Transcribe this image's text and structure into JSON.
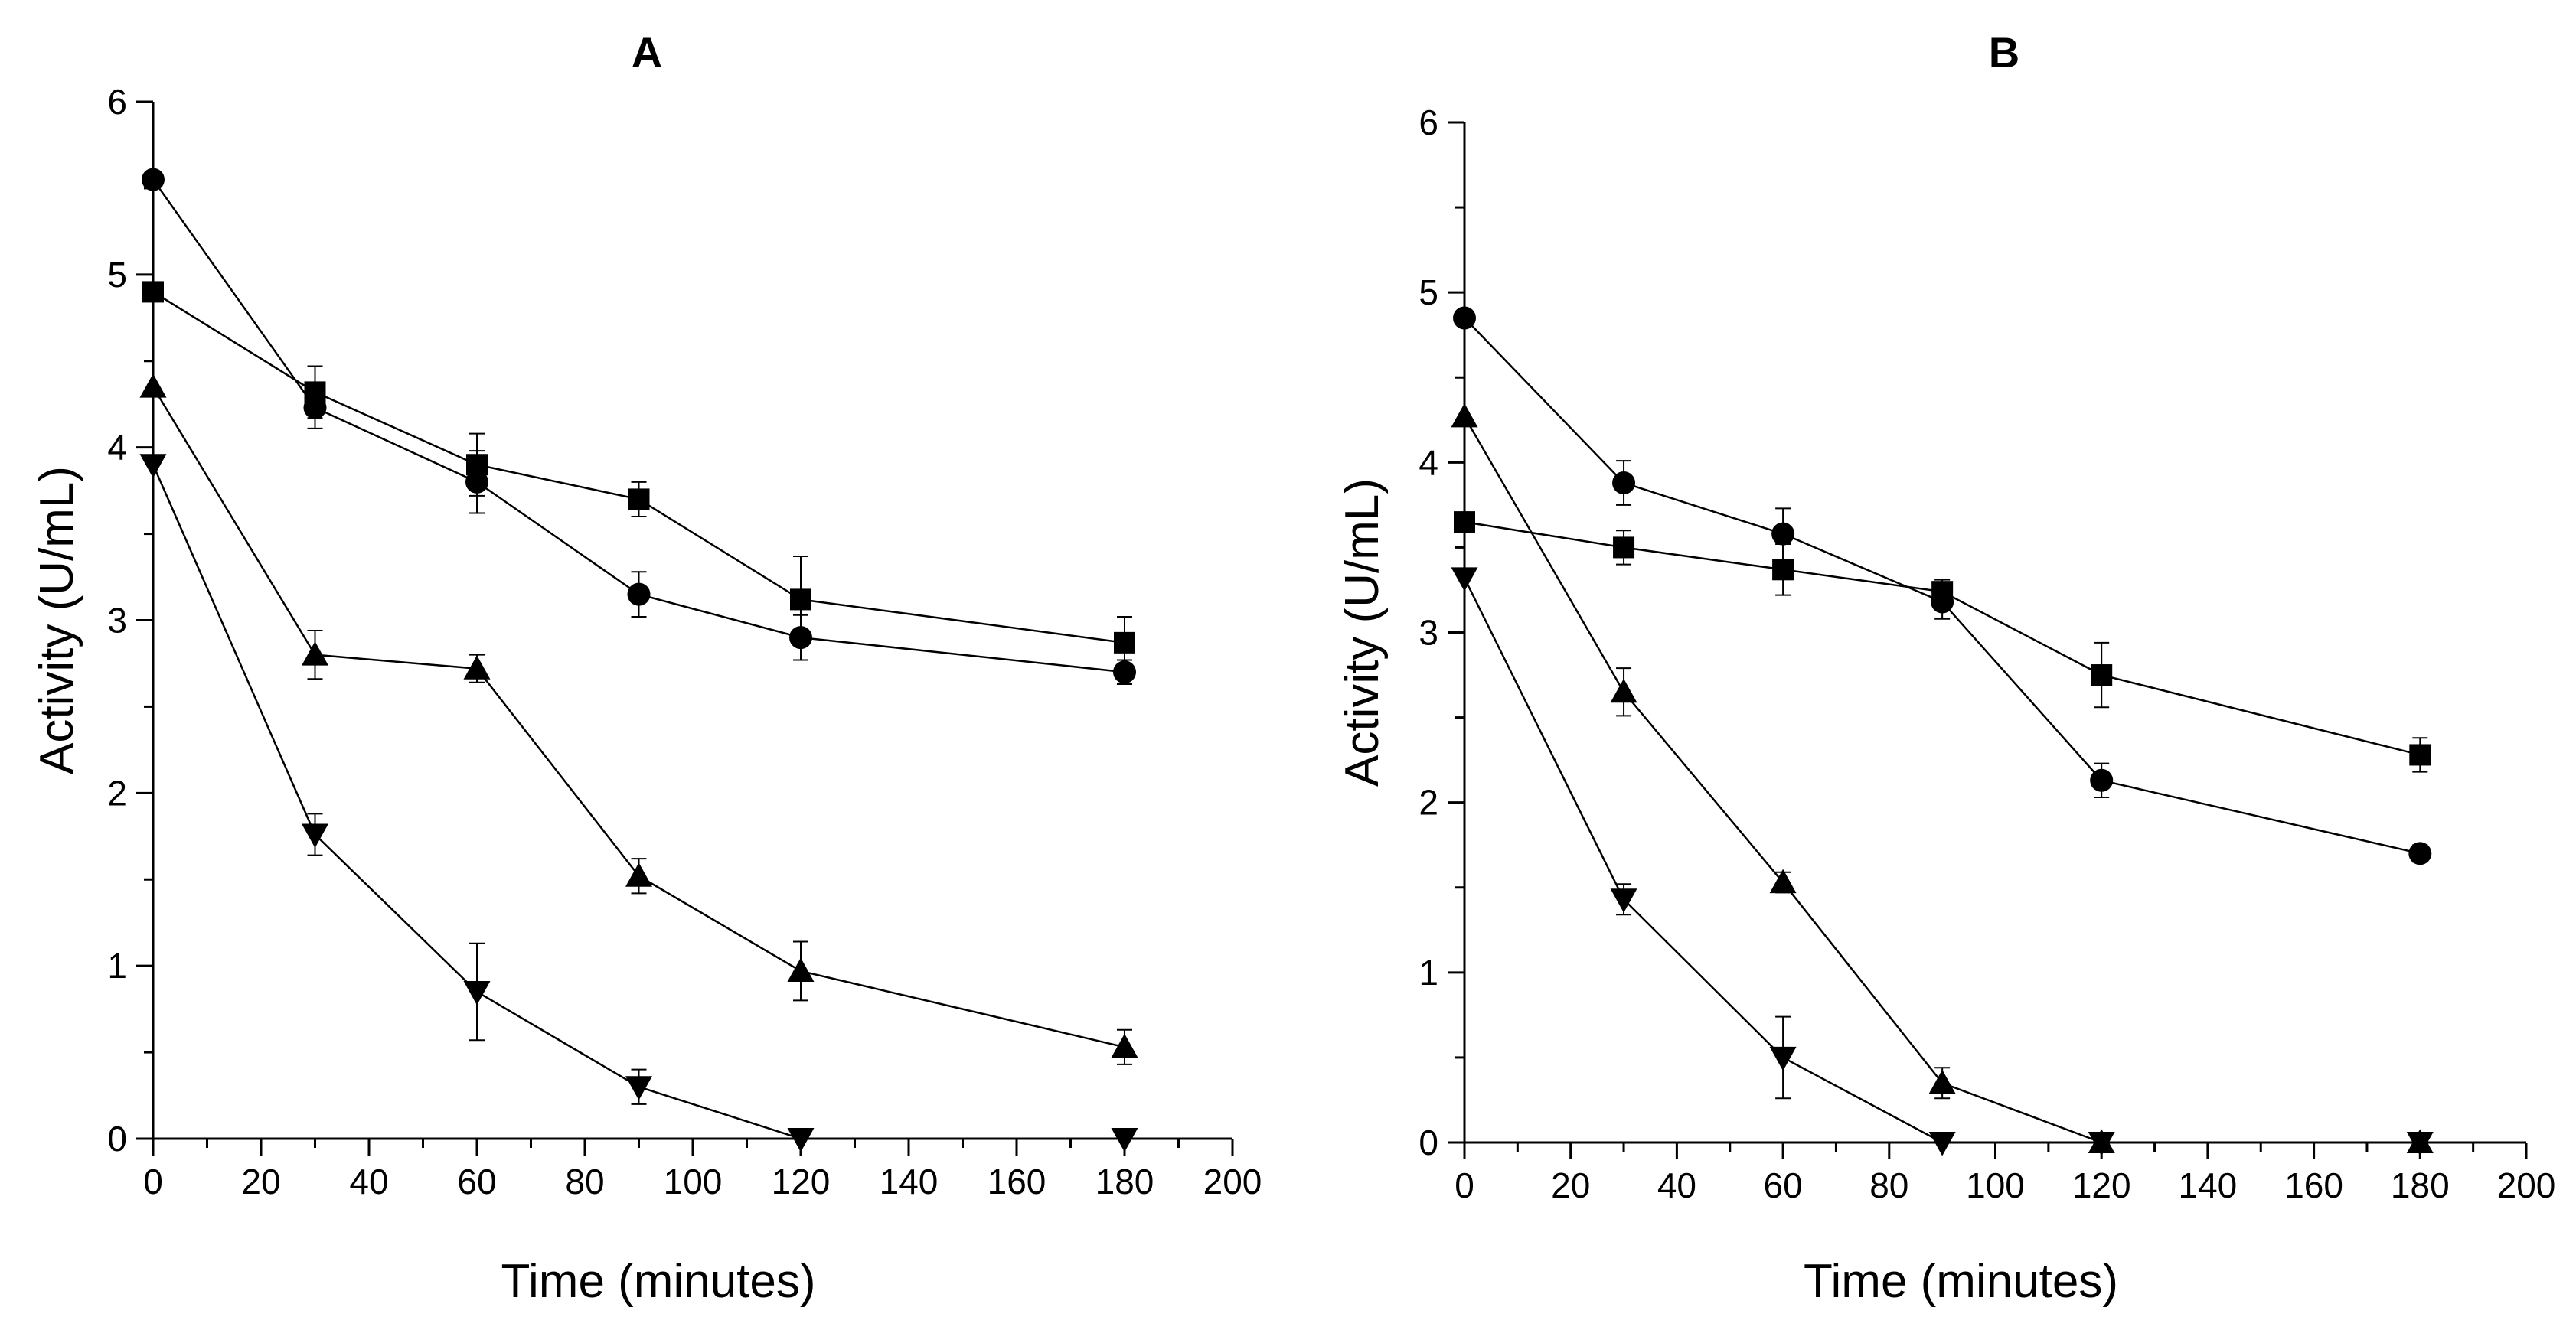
{
  "chart_data": [
    {
      "type": "line",
      "title": "A",
      "xlabel": "Time (minutes)",
      "ylabel": "Activity (U/mL)",
      "xlim": [
        0,
        200
      ],
      "ylim": [
        0,
        6
      ],
      "xticks": [
        0,
        20,
        40,
        60,
        80,
        100,
        120,
        140,
        160,
        180,
        200
      ],
      "yticks": [
        0,
        1,
        2,
        3,
        4,
        5,
        6
      ],
      "x": [
        0,
        30,
        60,
        90,
        120,
        180
      ],
      "series": [
        {
          "marker": "square",
          "values": [
            4.9,
            4.32,
            3.9,
            3.7,
            3.12,
            2.87
          ],
          "errors": [
            0,
            0.15,
            0.18,
            0.1,
            0.25,
            0.15
          ]
        },
        {
          "marker": "circle",
          "values": [
            5.55,
            4.23,
            3.8,
            3.15,
            2.9,
            2.7
          ],
          "errors": [
            0,
            0.12,
            0.18,
            0.13,
            0.13,
            0.07
          ]
        },
        {
          "marker": "triangle-up",
          "values": [
            4.35,
            2.8,
            2.72,
            1.52,
            0.97,
            0.53
          ],
          "errors": [
            0,
            0.14,
            0.08,
            0.1,
            0.17,
            0.1
          ]
        },
        {
          "marker": "triangle-down",
          "values": [
            3.9,
            1.76,
            0.85,
            0.3,
            0.0,
            0.0
          ],
          "errors": [
            0,
            0.12,
            0.28,
            0.1,
            0,
            0
          ]
        }
      ]
    },
    {
      "type": "line",
      "title": "B",
      "xlabel": "Time (minutes)",
      "ylabel": "Activity (U/mL)",
      "xlim": [
        0,
        200
      ],
      "ylim": [
        0,
        6
      ],
      "xticks": [
        0,
        20,
        40,
        60,
        80,
        100,
        120,
        140,
        160,
        180,
        200
      ],
      "yticks": [
        0,
        1,
        2,
        3,
        4,
        5,
        6
      ],
      "x": [
        0,
        30,
        60,
        90,
        120,
        180
      ],
      "series": [
        {
          "marker": "square",
          "values": [
            3.65,
            3.5,
            3.37,
            3.24,
            2.75,
            2.28
          ],
          "errors": [
            0,
            0.1,
            0.15,
            0.07,
            0.19,
            0.1
          ]
        },
        {
          "marker": "circle",
          "values": [
            4.85,
            3.88,
            3.58,
            3.18,
            2.13,
            1.7
          ],
          "errors": [
            0,
            0.13,
            0.15,
            0.1,
            0.1,
            0.05
          ]
        },
        {
          "marker": "triangle-up",
          "values": [
            4.27,
            2.65,
            1.53,
            0.35,
            0.0,
            0.0
          ],
          "errors": [
            0,
            0.14,
            0.06,
            0.09,
            0,
            0
          ]
        },
        {
          "marker": "triangle-down",
          "values": [
            3.32,
            1.43,
            0.5,
            0.0,
            0.0,
            0.0
          ],
          "errors": [
            0,
            0.09,
            0.24,
            0,
            0,
            0
          ]
        }
      ]
    }
  ]
}
